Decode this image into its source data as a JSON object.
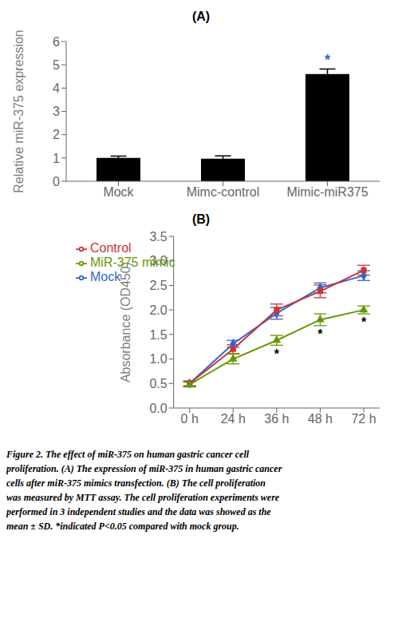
{
  "chart_data": [
    {
      "type": "bar",
      "title": "(A)",
      "categories": [
        "Mock",
        "Mimc-control",
        "Mimic-miR375"
      ],
      "values": [
        1.0,
        0.97,
        4.6
      ],
      "errors": [
        0.08,
        0.12,
        0.22
      ],
      "color": "#000000",
      "ylabel": "Relative miR-375 expression",
      "ylim": [
        0,
        6
      ],
      "yticks": [
        0,
        1,
        2,
        3,
        4,
        5,
        6
      ],
      "annotations": [
        {
          "text": "*",
          "category": "Mimic-miR375",
          "color": "#3366CC"
        }
      ]
    },
    {
      "type": "line",
      "title": "(B)",
      "categories": [
        "0 h",
        "24 h",
        "36 h",
        "48 h",
        "72 h"
      ],
      "ylabel": "Absorbance (OD450)",
      "ylim": [
        0.0,
        3.5
      ],
      "yticks": [
        {
          "value": 0,
          "label": "0.0"
        },
        0.5,
        {
          "value": 1,
          "label": "1.0"
        },
        1.5,
        {
          "value": 2,
          "label": "2.0"
        },
        2.5,
        {
          "value": 3,
          "label": "3.0"
        },
        3.5
      ],
      "legend": "upper left",
      "series": [
        {
          "name": "Mock",
          "color": "#3366CC",
          "marker": "diamond",
          "values": [
            0.5,
            1.31,
            1.93,
            2.45,
            2.7
          ],
          "errors": [
            0.05,
            0.07,
            0.12,
            0.1,
            0.1
          ]
        },
        {
          "name": "Control",
          "color": "#CC3333",
          "marker": "square",
          "values": [
            0.5,
            1.2,
            2.0,
            2.38,
            2.81
          ],
          "errors": [
            0.05,
            0.09,
            0.12,
            0.13,
            0.1
          ]
        },
        {
          "name": "MiR-375 mimic",
          "color": "#669900",
          "marker": "triangle",
          "values": [
            0.48,
            1.0,
            1.38,
            1.8,
            2.0
          ],
          "errors": [
            0.05,
            0.1,
            0.1,
            0.12,
            0.08
          ]
        }
      ],
      "annotations": [
        {
          "text": "*",
          "series": "MiR-375 mimic",
          "categories": [
            "36 h",
            "48 h",
            "72 h"
          ]
        }
      ]
    }
  ],
  "caption": [
    "Figure 2.  The effect of miR-375 on human gastric cancer cell",
    "proliferation. (A) The expression of miR-375 in human gastric cancer",
    "cells after miR-375 mimics transfection. (B) The cell proliferation",
    "was measured by MTT assay. The cell proliferation experiments were",
    "performed in 3 independent studies and the data was showed as the",
    "mean ± SD. *indicated P<0.05 compared with mock group."
  ]
}
